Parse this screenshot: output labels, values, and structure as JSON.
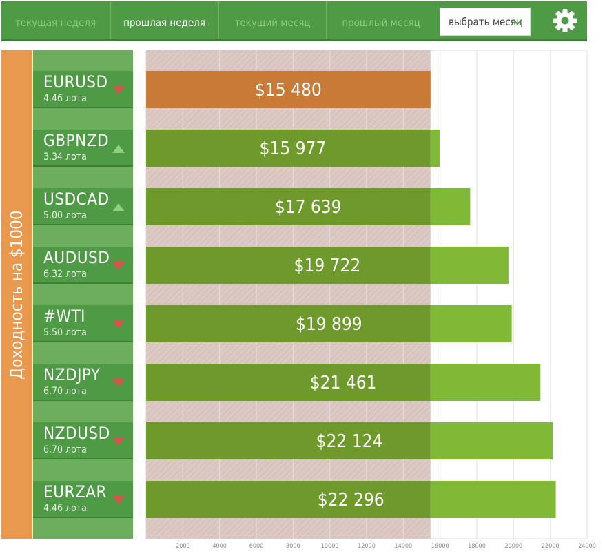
{
  "nav": {
    "tabs": [
      {
        "label": "текущая неделя",
        "active": false
      },
      {
        "label": "прошлая неделя",
        "active": true
      },
      {
        "label": "текущий месяц",
        "active": false
      },
      {
        "label": "прошлый месяц",
        "active": false
      }
    ],
    "month_select": {
      "value": "выбрать месяц",
      "icon": "chevron-down-icon"
    },
    "settings_icon": "gear-icon"
  },
  "side_label": "Доходность на $1000",
  "instruments": [
    {
      "symbol": "EURUSD",
      "lots": "4.46 лота",
      "trend": "down"
    },
    {
      "symbol": "GBPNZD",
      "lots": "3.34 лота",
      "trend": "up"
    },
    {
      "symbol": "USDCAD",
      "lots": "5.00 лота",
      "trend": "up"
    },
    {
      "symbol": "AUDUSD",
      "lots": "6.32 лота",
      "trend": "down"
    },
    {
      "symbol": "#WTI",
      "lots": "5.50 лота",
      "trend": "down"
    },
    {
      "symbol": "NZDJPY",
      "lots": "6.70 лота",
      "trend": "down"
    },
    {
      "symbol": "NZDUSD",
      "lots": "6.70 лота",
      "trend": "down"
    },
    {
      "symbol": "EURZAR",
      "lots": "4.46 лота",
      "trend": "down"
    }
  ],
  "chart_data": {
    "type": "bar",
    "orientation": "horizontal",
    "categories": [
      "EURUSD",
      "GBPNZD",
      "USDCAD",
      "AUDUSD",
      "#WTI",
      "NZDJPY",
      "NZDUSD",
      "EURZAR"
    ],
    "values": [
      15480,
      15977,
      17639,
      19722,
      19899,
      21461,
      22124,
      22296
    ],
    "value_labels": [
      "$15 480",
      "$15 977",
      "$17 639",
      "$19 722",
      "$19 899",
      "$21 461",
      "$22 124",
      "$22 296"
    ],
    "baseline_value": 15480,
    "xlim": [
      0,
      24000
    ],
    "xticks": [
      2000,
      4000,
      6000,
      8000,
      10000,
      12000,
      14000,
      16000,
      18000,
      20000,
      22000,
      24000
    ],
    "grid": true,
    "colors": {
      "highlight_bar": "#c97a37",
      "bar_overlap": "#6d9a2b",
      "bar_beyond": "#80b935",
      "baseline_band": "#dcc9c3",
      "tri_up": "#8fd07a",
      "tri_down": "#d9534f"
    }
  }
}
